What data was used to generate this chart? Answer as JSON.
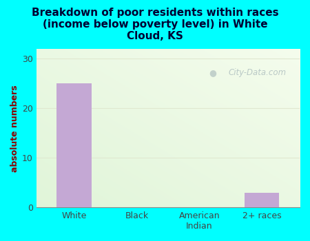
{
  "title": "Breakdown of poor residents within races\n(income below poverty level) in White\nCloud, KS",
  "categories": [
    "White",
    "Black",
    "American\nIndian",
    "2+ races"
  ],
  "values": [
    25,
    0,
    0,
    3
  ],
  "bar_color": "#c4a8d4",
  "ylabel": "absolute numbers",
  "ylim": [
    0,
    32
  ],
  "yticks": [
    0,
    10,
    20,
    30
  ],
  "bg_outer": "#00ffff",
  "title_color": "#000033",
  "ylabel_color": "#8b0000",
  "tick_color": "#444444",
  "watermark": "City-Data.com",
  "plot_bg_colors": [
    "#e8f0dc",
    "#f8faf0",
    "#ffffff"
  ],
  "grid_color": "#e0e8d0"
}
